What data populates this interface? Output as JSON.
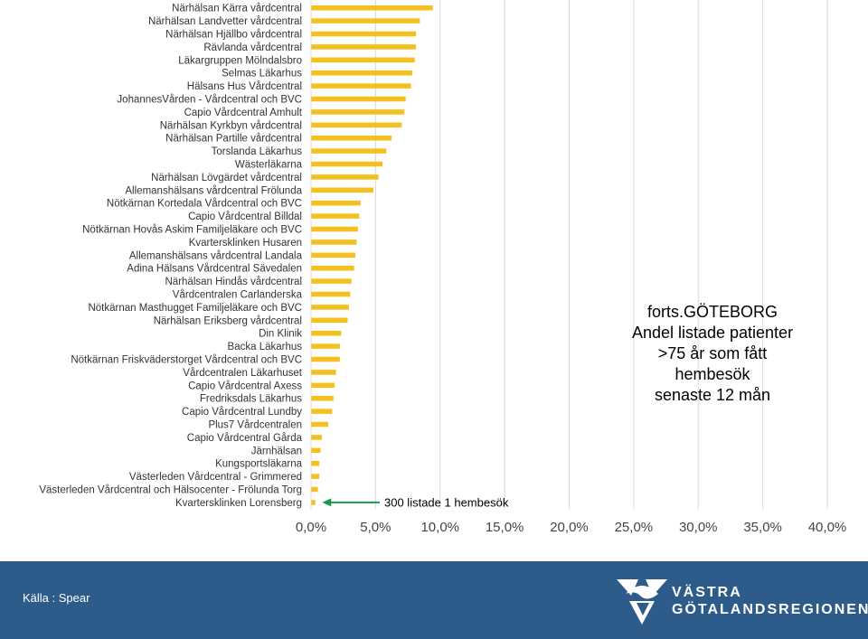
{
  "chart_data": {
    "type": "bar",
    "orientation": "horizontal",
    "categories": [
      "Närhälsan Kärra vårdcentral",
      "Närhälsan Landvetter vårdcentral",
      "Närhälsan Hjällbo vårdcentral",
      "Rävlanda vårdcentral",
      "Läkargruppen Mölndalsbro",
      "Selmas Läkarhus",
      "Hälsans Hus Vårdcentral",
      "JohannesVården - Vårdcentral och BVC",
      "Capio Vårdcentral Amhult",
      "Närhälsan Kyrkbyn vårdcentral",
      "Närhälsan Partille vårdcentral",
      "Torslanda Läkarhus",
      "Wästerläkarna",
      "Närhälsan Lövgärdet vårdcentral",
      "Allemanshälsans vårdcentral Frölunda",
      "Nötkärnan Kortedala Vårdcentral och BVC",
      "Capio Vårdcentral Billdal",
      "Nötkärnan Hovås Askim Familjeläkare och BVC",
      "Kvartersklinken Husaren",
      "Allemanshälsans vårdcentral Landala",
      "Adina Hälsans Vårdcentral Sävedalen",
      "Närhälsan Hindås vårdcentral",
      "Vårdcentralen Carlanderska",
      "Nötkärnan Masthugget Familjeläkare och BVC",
      "Närhälsan Eriksberg vårdcentral",
      "Din Klinik",
      "Backa Läkarhus",
      "Nötkärnan Friskväderstorget Vårdcentral och BVC",
      "Vårdcentralen Läkarhuset",
      "Capio Vårdcentral Axess",
      "Fredriksdals Läkarhus",
      "Capio Vårdcentral Lundby",
      "Plus7 Vårdcentralen",
      "Capio Vårdcentral Gårda",
      "Järnhälsan",
      "Kungsportsläkarna",
      "Västerleden Vårdcentral - Grimmered",
      "Västerleden Vårdcentral och Hälsocenter - Frölunda Torg",
      "Kvartersklinken Lorensberg"
    ],
    "values": [
      9.4,
      8.4,
      8.1,
      8.1,
      8.0,
      7.8,
      7.7,
      7.3,
      7.2,
      7.0,
      6.2,
      5.8,
      5.5,
      5.2,
      4.8,
      3.8,
      3.7,
      3.6,
      3.5,
      3.4,
      3.3,
      3.1,
      3.0,
      2.9,
      2.8,
      2.3,
      2.2,
      2.2,
      1.9,
      1.8,
      1.7,
      1.6,
      1.3,
      0.8,
      0.7,
      0.6,
      0.6,
      0.5,
      0.3
    ],
    "xlim": [
      0,
      40
    ],
    "xticks": [
      "0,0%",
      "5,0%",
      "10,0%",
      "15,0%",
      "20,0%",
      "25,0%",
      "30,0%",
      "35,0%",
      "40,0%"
    ],
    "xtick_values": [
      0,
      5,
      10,
      15,
      20,
      25,
      30,
      35,
      40
    ],
    "bar_color": "#f5bf1e",
    "grid_color": "#d9d9d9",
    "annotation": {
      "text": "300 listade 1 hembesök",
      "target_index": 38,
      "arrow_color": "#1a9a4a"
    },
    "title_lines": [
      "forts.GÖTEBORG",
      "Andel listade patienter",
      ">75 år som fått",
      "hembesök",
      "senaste 12 mån"
    ]
  },
  "footer": {
    "source": "Källa : Spear",
    "logo_line1": "VÄSTRA",
    "logo_line2": "GÖTALANDSREGIONEN",
    "background": "#2e5c8a"
  }
}
